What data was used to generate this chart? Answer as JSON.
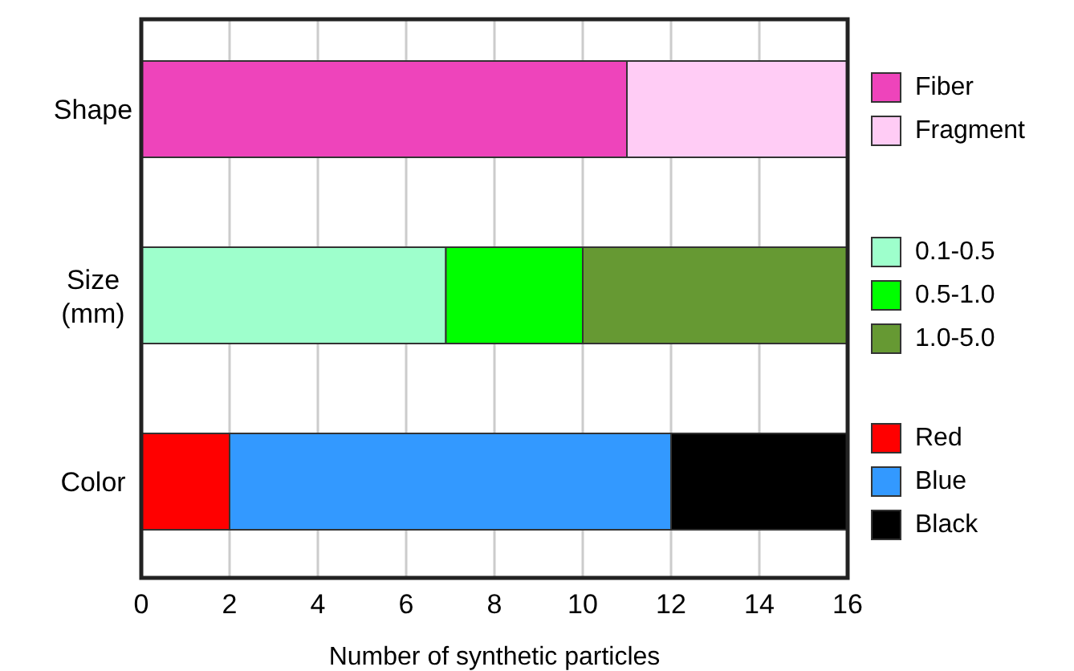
{
  "chart_data": {
    "type": "bar",
    "orientation": "horizontal",
    "stacked": true,
    "xlabel": "Number of synthetic particles",
    "categories": [
      "Shape",
      "Size (mm)",
      "Color"
    ],
    "series": [
      {
        "name": "Fiber",
        "color": "#ee44bb",
        "values": [
          11,
          null,
          null
        ]
      },
      {
        "name": "Fragment",
        "color": "#ffccf5",
        "values": [
          5,
          null,
          null
        ]
      },
      {
        "name": "0.1-0.5",
        "color": "#9effcc",
        "values": [
          null,
          6.9,
          null
        ]
      },
      {
        "name": "0.5-1.0",
        "color": "#00ff00",
        "values": [
          null,
          3.1,
          null
        ]
      },
      {
        "name": "1.0-5.0",
        "color": "#669933",
        "values": [
          null,
          6,
          null
        ]
      },
      {
        "name": "Red",
        "color": "#ff0000",
        "values": [
          null,
          null,
          2
        ]
      },
      {
        "name": "Blue",
        "color": "#3399ff",
        "values": [
          null,
          null,
          10
        ]
      },
      {
        "name": "Black",
        "color": "#000000",
        "values": [
          null,
          null,
          4
        ]
      }
    ],
    "xlim": [
      0,
      16
    ],
    "xticks": [
      0,
      2,
      4,
      6,
      8,
      10,
      12,
      14,
      16
    ],
    "grid": "x",
    "legend": "right"
  }
}
